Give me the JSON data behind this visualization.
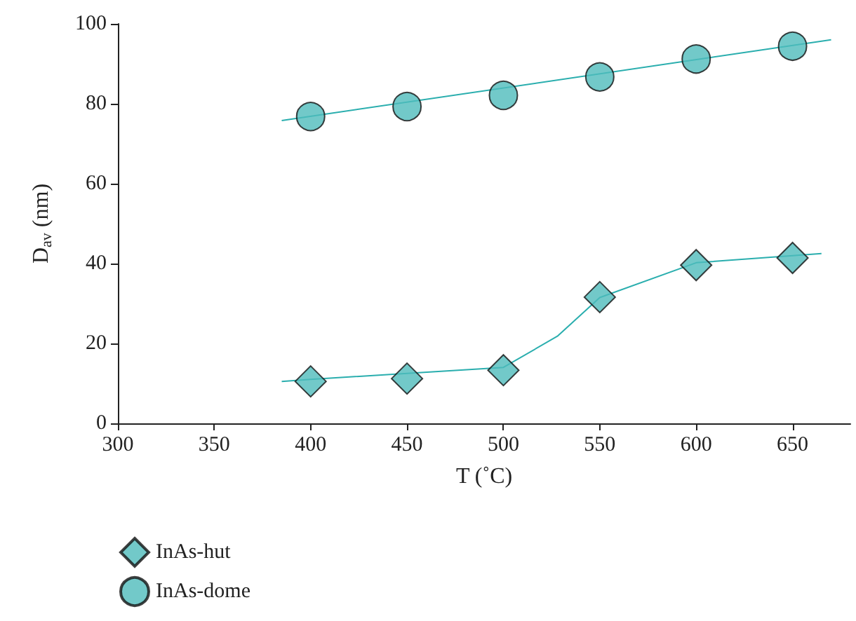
{
  "chart_data": {
    "type": "scatter",
    "xlabel": "T (˚C)",
    "ylabel": "D$_{av}$ (nm)",
    "xlim": [
      300,
      680
    ],
    "xticks": [
      300,
      350,
      400,
      450,
      500,
      550,
      600,
      650
    ],
    "ylim": [
      0,
      100
    ],
    "yticks": [
      0,
      20,
      40,
      60,
      80,
      100
    ],
    "grid": false,
    "legend": "bottom left",
    "series": [
      {
        "name": "InAs-hut",
        "type": "scatter",
        "marker": "diamond",
        "color": "#4fbcbc",
        "x": [
          400,
          450,
          500,
          550,
          600,
          650
        ],
        "values": [
          10.5,
          11.2,
          13.3,
          31.6,
          39.6,
          41.4
        ]
      },
      {
        "name": "InAs-dome",
        "type": "scatter",
        "marker": "circle",
        "color": "#4fbcbc",
        "x": [
          400,
          450,
          500,
          550,
          600,
          650
        ],
        "values": [
          76.8,
          79.3,
          82.1,
          86.7,
          91.2,
          94.4
        ]
      },
      {
        "type": "line",
        "marker": "none",
        "color": "#2aaeae",
        "x": [
          385,
          400,
          450,
          500,
          528,
          550,
          600,
          665
        ],
        "values": [
          10.5,
          11,
          12.5,
          14,
          21.8,
          31.5,
          40.2,
          42.5
        ]
      },
      {
        "type": "line",
        "marker": "none",
        "color": "#2aaeae",
        "x": [
          385,
          670
        ],
        "values": [
          75.8,
          96
        ]
      }
    ]
  }
}
